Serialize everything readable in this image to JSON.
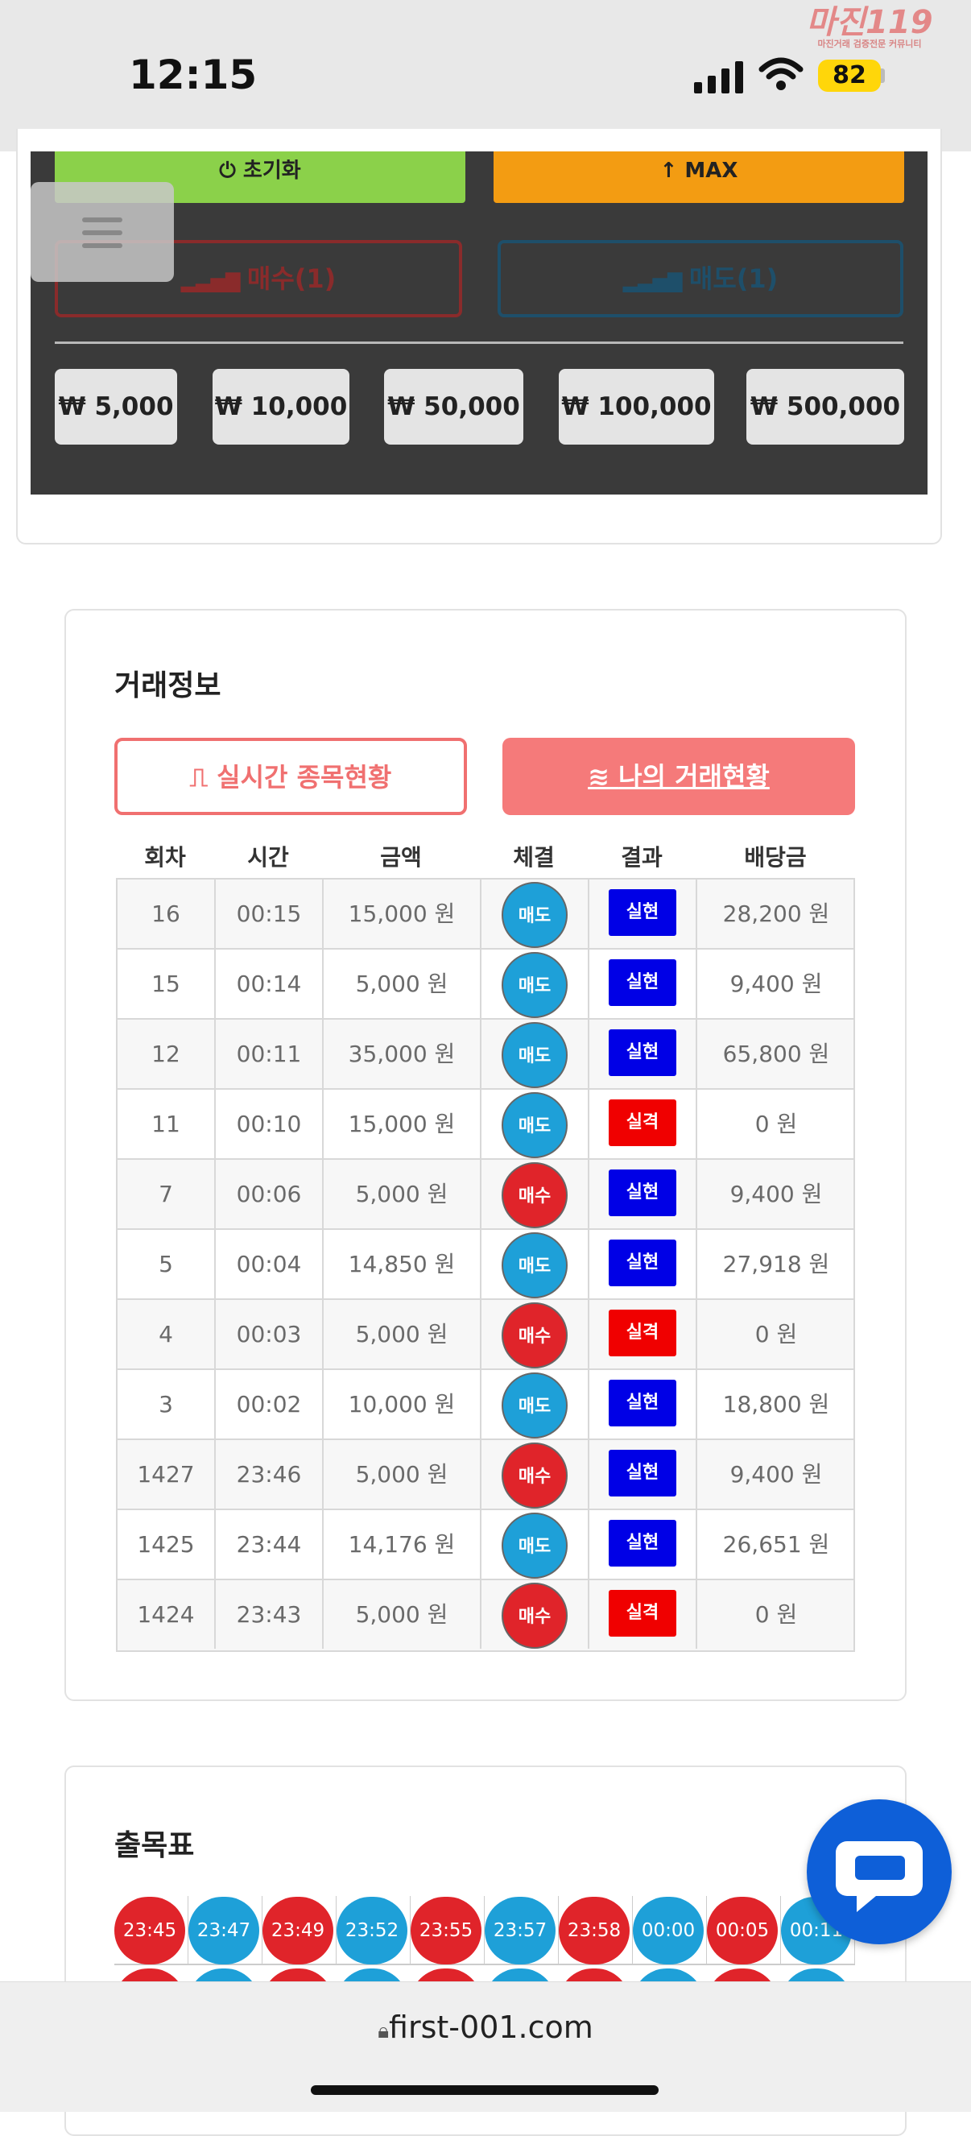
{
  "status": {
    "time": "12:15",
    "battery": "82"
  },
  "logo": {
    "text": "마진119",
    "sub": "마진거래 검증전문 커뮤니티"
  },
  "panel": {
    "reset_label": "초기화",
    "max_label": "MAX",
    "buy_label": "매수(1)",
    "sell_label": "매도(1)",
    "amounts": [
      "₩ 5,000",
      "₩ 10,000",
      "₩ 50,000",
      "₩ 100,000",
      "₩ 500,000"
    ]
  },
  "trade": {
    "title": "거래정보",
    "tab_realtime": "실시간 종목현황",
    "tab_mine": "나의 거래현황",
    "columns": [
      "회차",
      "시간",
      "금액",
      "체결",
      "결과",
      "배당금"
    ],
    "rows": [
      {
        "round": "16",
        "time": "00:15",
        "amount": "15,000 원",
        "side": "매도",
        "result": "실현",
        "payout": "28,200 원"
      },
      {
        "round": "15",
        "time": "00:14",
        "amount": "5,000 원",
        "side": "매도",
        "result": "실현",
        "payout": "9,400 원"
      },
      {
        "round": "12",
        "time": "00:11",
        "amount": "35,000 원",
        "side": "매도",
        "result": "실현",
        "payout": "65,800 원"
      },
      {
        "round": "11",
        "time": "00:10",
        "amount": "15,000 원",
        "side": "매도",
        "result": "실격",
        "payout": "0 원"
      },
      {
        "round": "7",
        "time": "00:06",
        "amount": "5,000 원",
        "side": "매수",
        "result": "실현",
        "payout": "9,400 원"
      },
      {
        "round": "5",
        "time": "00:04",
        "amount": "14,850 원",
        "side": "매도",
        "result": "실현",
        "payout": "27,918 원"
      },
      {
        "round": "4",
        "time": "00:03",
        "amount": "5,000 원",
        "side": "매수",
        "result": "실격",
        "payout": "0 원"
      },
      {
        "round": "3",
        "time": "00:02",
        "amount": "10,000 원",
        "side": "매도",
        "result": "실현",
        "payout": "18,800 원"
      },
      {
        "round": "1427",
        "time": "23:46",
        "amount": "5,000 원",
        "side": "매수",
        "result": "실현",
        "payout": "9,400 원"
      },
      {
        "round": "1425",
        "time": "23:44",
        "amount": "14,176 원",
        "side": "매도",
        "result": "실현",
        "payout": "26,651 원"
      },
      {
        "round": "1424",
        "time": "23:43",
        "amount": "5,000 원",
        "side": "매수",
        "result": "실격",
        "payout": "0 원"
      }
    ]
  },
  "schedule": {
    "title": "출목표",
    "times": [
      {
        "t": "23:45",
        "c": "red"
      },
      {
        "t": "23:47",
        "c": "blue"
      },
      {
        "t": "23:49",
        "c": "red"
      },
      {
        "t": "23:52",
        "c": "blue"
      },
      {
        "t": "23:55",
        "c": "red"
      },
      {
        "t": "23:57",
        "c": "blue"
      },
      {
        "t": "23:58",
        "c": "red"
      },
      {
        "t": "00:00",
        "c": "blue"
      },
      {
        "t": "00:05",
        "c": "red"
      },
      {
        "t": "00:11",
        "c": "blue"
      }
    ]
  },
  "colors": {
    "buy": "#e0242a",
    "sell": "#1ea0d8",
    "realized": "#0000e6",
    "failed": "#f00000"
  },
  "url": "first-001.com"
}
